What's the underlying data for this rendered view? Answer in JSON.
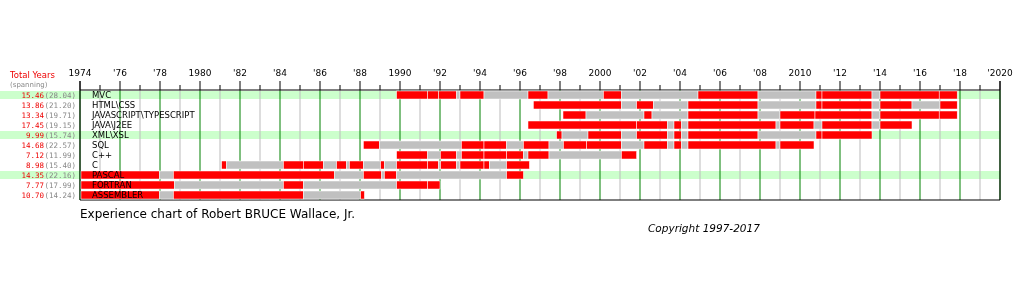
{
  "chart_data": {
    "type": "bar",
    "orientation": "horizontal",
    "title": "Experience chart of Robert BRUCE Wallace, Jr.",
    "annotations": [
      "Total Years",
      "(spanning)",
      "Copyright 1997-2017",
      "15.46",
      "(28.04)",
      "13.86",
      "(21.20)",
      "13.34",
      "(19.71)",
      "17.45",
      "(19.15)",
      "9.99",
      "(15.74)",
      "14.68",
      "(22.57)",
      "7.12",
      "(11.99)",
      "8.98",
      "(15.40)",
      "14.35",
      "(22.16)",
      "7.77",
      "(17.99)",
      "10.70",
      "(14.24)"
    ],
    "categories": [
      "MVC",
      "HTML\\CSS",
      "JAVASCRIPT\\TYPESCRIPT",
      "JAVA\\J2EE",
      "XML\\XSL",
      "SQL",
      "C++",
      "C",
      "PASCAL",
      "FORTRAN",
      "ASSEMBLER"
    ],
    "series": [
      {
        "base": [
          1989.83,
          1996.67,
          1998.15,
          1996.4,
          1997.83,
          1988.17,
          1989.83,
          1981.08,
          1974.05,
          1974.05,
          1974.05
        ],
        "values": [
          1.55,
          4.4,
          1.15,
          5.43,
          0.27,
          0.8,
          1.55,
          0.25,
          3.92,
          4.67,
          3.92
        ],
        "colors": [
          "#ff0000",
          "#ff0000",
          "#ff0000",
          "#ff0000",
          "#ff0000",
          "#ff0000",
          "#ff0000",
          "#ff0000",
          "#ff0000",
          "#ff0000",
          "#ff0000"
        ]
      },
      {
        "base": [
          1991.38,
          2001.07,
          1999.3,
          2001.83,
          1998.1,
          1988.97,
          1991.38,
          1981.33,
          1977.97,
          1978.72,
          1977.97
        ],
        "values": [
          0.55,
          0.76,
          2.9,
          1.54,
          1.3,
          4.1,
          0.64,
          2.84,
          0.7,
          5.45,
          0.7
        ],
        "colors": [
          "#ff0000",
          "#c0c0c0",
          "#c0c0c0",
          "#ff0000",
          "#c0c0c0",
          "#c0c0c0",
          "#c0c0c0",
          "#c0c0c0",
          "#c0c0c0",
          "#c0c0c0",
          "#c0c0c0"
        ]
      },
      {
        "base": [
          1991.93,
          2001.83,
          2002.2,
          2003.37,
          1999.4,
          1993.07,
          1992.02,
          1984.17,
          1978.67,
          1984.17,
          1978.67
        ],
        "values": [
          0.9,
          0.84,
          0.4,
          0.33,
          1.67,
          1.13,
          0.81,
          1.0,
          8.05,
          1.0,
          6.5
        ],
        "colors": [
          "#ff0000",
          "#ff0000",
          "#ff0000",
          "#c0c0c0",
          "#ff0000",
          "#ff0000",
          "#ff0000",
          "#ff0000",
          "#ff0000",
          "#ff0000",
          "#ff0000"
        ]
      },
      {
        "base": [
          1992.83,
          2002.67,
          2002.6,
          2003.7,
          2001.07,
          1994.2,
          1992.83,
          1985.17,
          1986.72,
          1985.17,
          1985.17
        ],
        "values": [
          0.17,
          1.73,
          1.8,
          0.38,
          0.76,
          1.13,
          0.24,
          1.0,
          1.45,
          4.66,
          2.86
        ],
        "colors": [
          "#c0c0c0",
          "#c0c0c0",
          "#c0c0c0",
          "#ff0000",
          "#c0c0c0",
          "#ff0000",
          "#c0c0c0",
          "#ff0000",
          "#c0c0c0",
          "#c0c0c0",
          "#c0c0c0"
        ]
      },
      {
        "base": [
          1993.0,
          2004.4,
          2004.4,
          2004.08,
          2001.83,
          1995.33,
          1993.07,
          1986.17,
          1988.17,
          1989.83,
          1988.03
        ],
        "values": [
          1.2,
          3.5,
          3.5,
          0.32,
          1.54,
          0.84,
          1.13,
          0.66,
          0.91,
          1.55,
          0.19
        ],
        "colors": [
          "#ff0000",
          "#ff0000",
          "#ff0000",
          "#c0c0c0",
          "#ff0000",
          "#c0c0c0",
          "#ff0000",
          "#c0c0c0",
          "#ff0000",
          "#ff0000",
          "#ff0000"
        ]
      },
      {
        "base": [
          1994.2,
          2007.9,
          2007.9,
          2004.4,
          2003.37,
          1996.17,
          1994.2,
          1986.83,
          1989.08,
          1991.38,
          null
        ],
        "values": [
          2.2,
          2.9,
          1.1,
          4.4,
          0.33,
          1.28,
          1.13,
          0.5,
          0.14,
          0.62,
          null
        ],
        "colors": [
          "#c0c0c0",
          "#c0c0c0",
          "#c0c0c0",
          "#ff0000",
          "#c0c0c0",
          "#ff0000",
          "#ff0000",
          "#ff0000",
          "#c0c0c0",
          "#ff0000",
          null
        ]
      },
      {
        "base": [
          1996.4,
          2010.8,
          2009.0,
          2008.8,
          2003.7,
          1997.45,
          1995.33,
          1987.33,
          1989.22,
          null,
          null
        ],
        "values": [
          1.0,
          0.3,
          1.75,
          0.2,
          0.38,
          0.72,
          0.84,
          0.14,
          0.61,
          null,
          null
        ],
        "colors": [
          "#ff0000",
          "#ff0000",
          "#ff0000",
          "#c0c0c0",
          "#ff0000",
          "#c0c0c0",
          "#ff0000",
          "#c0c0c0",
          "#ff0000",
          null,
          null
        ]
      },
      {
        "base": [
          1997.4,
          2011.1,
          2010.75,
          2009.0,
          2004.08,
          1998.17,
          1996.17,
          1987.47,
          1989.83,
          null,
          null
        ],
        "values": [
          2.77,
          2.5,
          2.85,
          1.7,
          0.32,
          1.16,
          0.23,
          0.7,
          5.5,
          null,
          null
        ],
        "colors": [
          "#c0c0c0",
          "#ff0000",
          "#ff0000",
          "#ff0000",
          "#c0c0c0",
          "#ff0000",
          "#c0c0c0",
          "#ff0000",
          "#c0c0c0",
          null,
          null
        ]
      },
      {
        "base": [
          2000.17,
          2013.6,
          2013.6,
          2010.7,
          2004.4,
          1999.33,
          1996.4,
          1988.17,
          1995.33,
          null,
          null
        ],
        "values": [
          0.9,
          0.4,
          0.4,
          0.4,
          3.5,
          1.74,
          1.05,
          0.86,
          0.84,
          null,
          null
        ],
        "colors": [
          "#ff0000",
          "#c0c0c0",
          "#c0c0c0",
          "#c0c0c0",
          "#ff0000",
          "#ff0000",
          "#ff0000",
          "#c0c0c0",
          "#ff0000",
          null,
          null
        ]
      },
      {
        "base": [
          2001.07,
          2014.0,
          2014.0,
          2011.1,
          2007.9,
          2001.07,
          1997.45,
          1989.03,
          null,
          null,
          null
        ],
        "values": [
          3.83,
          1.6,
          2.96,
          2.5,
          2.9,
          1.13,
          3.62,
          0.19,
          null,
          null,
          null
        ],
        "colors": [
          "#c0c0c0",
          "#ff0000",
          "#ff0000",
          "#ff0000",
          "#c0c0c0",
          "#c0c0c0",
          "#c0c0c0",
          "#ff0000",
          null,
          null,
          null
        ]
      },
      {
        "base": [
          2004.9,
          2015.6,
          2016.96,
          2013.6,
          2010.8,
          2002.2,
          2001.07,
          1989.22,
          null,
          null,
          null
        ],
        "values": [
          3.0,
          1.4,
          0.9,
          0.4,
          0.3,
          1.17,
          0.76,
          0.61,
          null,
          null,
          null
        ],
        "colors": [
          "#ff0000",
          "#c0c0c0",
          "#ff0000",
          "#c0c0c0",
          "#ff0000",
          "#ff0000",
          "#ff0000",
          "#c0c0c0",
          null,
          null,
          null
        ]
      },
      {
        "base": [
          2007.9,
          2017.0,
          null,
          2014.0,
          2011.1,
          2003.37,
          null,
          1989.83,
          null,
          null,
          null
        ],
        "values": [
          2.9,
          0.86,
          null,
          1.6,
          2.5,
          0.33,
          null,
          1.55,
          null,
          null,
          null
        ],
        "colors": [
          "#c0c0c0",
          "#ff0000",
          null,
          "#ff0000",
          "#ff0000",
          "#c0c0c0",
          null,
          "#ff0000",
          null,
          null,
          null
        ]
      },
      {
        "base": [
          2010.8,
          null,
          null,
          null,
          null,
          2003.7,
          null,
          1991.38,
          null,
          null,
          null
        ],
        "values": [
          0.3,
          null,
          null,
          null,
          null,
          0.38,
          null,
          0.55,
          null,
          null,
          null
        ],
        "colors": [
          "#ff0000",
          null,
          null,
          null,
          null,
          "#ff0000",
          null,
          "#ff0000",
          null,
          null,
          null
        ]
      },
      {
        "base": [
          2011.1,
          null,
          null,
          null,
          null,
          2004.08,
          null,
          1991.93,
          null,
          null,
          null
        ],
        "values": [
          2.5,
          null,
          null,
          null,
          null,
          0.32,
          null,
          0.1,
          null,
          null,
          null
        ],
        "colors": [
          "#ff0000",
          null,
          null,
          null,
          null,
          "#c0c0c0",
          null,
          "#c0c0c0",
          null,
          null,
          null
        ]
      },
      {
        "base": [
          2013.6,
          null,
          null,
          null,
          null,
          2004.4,
          null,
          1992.03,
          null,
          null,
          null
        ],
        "values": [
          0.4,
          null,
          null,
          null,
          null,
          4.4,
          null,
          0.8,
          null,
          null,
          null
        ],
        "colors": [
          "#c0c0c0",
          null,
          null,
          null,
          null,
          "#ff0000",
          null,
          "#ff0000",
          null,
          null,
          null
        ]
      },
      {
        "base": [
          2014.0,
          null,
          null,
          null,
          null,
          2008.8,
          null,
          1992.83,
          null,
          null,
          null
        ],
        "values": [
          2.96,
          null,
          null,
          null,
          null,
          0.2,
          null,
          0.17,
          null,
          null,
          null
        ],
        "colors": [
          "#ff0000",
          null,
          null,
          null,
          null,
          "#c0c0c0",
          null,
          "#c0c0c0",
          null,
          null,
          null
        ]
      },
      {
        "base": [
          2016.96,
          null,
          null,
          null,
          null,
          2009.0,
          null,
          1993.0,
          null,
          null,
          null
        ],
        "values": [
          0.9,
          null,
          null,
          null,
          null,
          1.7,
          null,
          1.2,
          null,
          null,
          null
        ],
        "colors": [
          "#ff0000",
          null,
          null,
          null,
          null,
          "#ff0000",
          null,
          "#ff0000",
          null,
          null,
          null
        ]
      },
      {
        "base": [
          null,
          null,
          null,
          null,
          null,
          null,
          null,
          1994.2,
          null,
          null,
          null
        ],
        "values": [
          null,
          null,
          null,
          null,
          null,
          null,
          null,
          0.27,
          null,
          null,
          null
        ],
        "colors": [
          null,
          null,
          null,
          null,
          null,
          null,
          null,
          "#ff0000",
          null,
          null,
          null
        ]
      },
      {
        "base": [
          null,
          null,
          null,
          null,
          null,
          null,
          null,
          1994.47,
          null,
          null,
          null
        ],
        "values": [
          null,
          null,
          null,
          null,
          null,
          null,
          null,
          0.86,
          null,
          null,
          null
        ],
        "colors": [
          null,
          null,
          null,
          null,
          null,
          null,
          null,
          "#c0c0c0",
          null,
          null,
          null
        ]
      },
      {
        "base": [
          null,
          null,
          null,
          null,
          null,
          null,
          null,
          1995.33,
          null,
          null,
          null
        ],
        "values": [
          null,
          null,
          null,
          null,
          null,
          null,
          null,
          1.14,
          null,
          null,
          null
        ],
        "colors": [
          null,
          null,
          null,
          null,
          null,
          null,
          null,
          "#ff0000",
          null,
          null,
          null
        ]
      }
    ],
    "xlim": [
      1974,
      2020
    ],
    "xticks": [
      {
        "value": 1974,
        "label": "1974"
      },
      {
        "value": 1975,
        "label": null
      },
      {
        "value": 1976,
        "label": "'76"
      },
      {
        "value": 1977,
        "label": null
      },
      {
        "value": 1978,
        "label": "'78"
      },
      {
        "value": 1979,
        "label": null
      },
      {
        "value": 1980,
        "label": "1980"
      },
      {
        "value": 1981,
        "label": null
      },
      {
        "value": 1982,
        "label": "'82"
      },
      {
        "value": 1983,
        "label": null
      },
      {
        "value": 1984,
        "label": "'84"
      },
      {
        "value": 1985,
        "label": null
      },
      {
        "value": 1986,
        "label": "'86"
      },
      {
        "value": 1987,
        "label": null
      },
      {
        "value": 1988,
        "label": "'88"
      },
      {
        "value": 1989,
        "label": null
      },
      {
        "value": 1990,
        "label": "1990"
      },
      {
        "value": 1991,
        "label": null
      },
      {
        "value": 1992,
        "label": "'92"
      },
      {
        "value": 1993,
        "label": null
      },
      {
        "value": 1994,
        "label": "'94"
      },
      {
        "value": 1995,
        "label": null
      },
      {
        "value": 1996,
        "label": "'96"
      },
      {
        "value": 1997,
        "label": null
      },
      {
        "value": 1998,
        "label": "'98"
      },
      {
        "value": 1999,
        "label": null
      },
      {
        "value": 2000,
        "label": "2000"
      },
      {
        "value": 2001,
        "label": null
      },
      {
        "value": 2002,
        "label": "'02"
      },
      {
        "value": 2003,
        "label": null
      },
      {
        "value": 2004,
        "label": "'04"
      },
      {
        "value": 2005,
        "label": null
      },
      {
        "value": 2006,
        "label": "'06"
      },
      {
        "value": 2007,
        "label": null
      },
      {
        "value": 2008,
        "label": "'08"
      },
      {
        "value": 2009,
        "label": null
      },
      {
        "value": 2010,
        "label": "2010"
      },
      {
        "value": 2011,
        "label": null
      },
      {
        "value": 2012,
        "label": "'12"
      },
      {
        "value": 2013,
        "label": null
      },
      {
        "value": 2014,
        "label": "'14"
      },
      {
        "value": 2015,
        "label": null
      },
      {
        "value": 2016,
        "label": "'16"
      },
      {
        "value": 2017,
        "label": null
      },
      {
        "value": 2018,
        "label": "'18"
      },
      {
        "value": 2019,
        "label": null
      },
      {
        "value": 2020,
        "label": "'2020"
      }
    ],
    "grid": true,
    "bands": [
      {
        "axis": "y",
        "from": "MVC",
        "to": "MVC",
        "color": "#ccffcc"
      },
      {
        "axis": "y",
        "from": "XML\\XSL",
        "to": "XML\\XSL",
        "color": "#ccffcc"
      },
      {
        "axis": "y",
        "from": "PASCAL",
        "to": "PASCAL",
        "color": "#ccffcc"
      }
    ]
  }
}
